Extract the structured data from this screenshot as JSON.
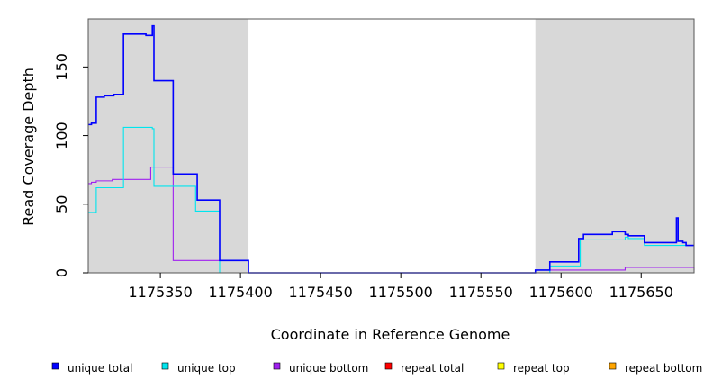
{
  "chart_data": {
    "type": "line",
    "xlabel": "Coordinate in Reference Genome",
    "ylabel": "Read Coverage Depth",
    "xlim": [
      1175305,
      1175683
    ],
    "ylim": [
      0,
      185
    ],
    "x_ticks": [
      1175350,
      1175400,
      1175450,
      1175500,
      1175550,
      1175600,
      1175650
    ],
    "x_tick_labels": [
      "1175350",
      "1175400",
      "1175450",
      "1175500",
      "1175550",
      "1175600",
      "1175650"
    ],
    "y_ticks": [
      0,
      50,
      100,
      150
    ],
    "y_tick_labels": [
      "0",
      "50",
      "100",
      "150"
    ],
    "shaded_regions": [
      [
        1175305,
        1175405
      ],
      [
        1175584,
        1175683
      ]
    ],
    "colors": {
      "shade": "#d8d8d8",
      "unique_total": "#0000ff",
      "unique_top": "#00e5ee",
      "unique_bottom": "#a020f0",
      "repeat_total": "#ff0000",
      "repeat_top": "#ffff00",
      "repeat_bottom": "#ffa500"
    },
    "series": [
      {
        "name": "unique total",
        "color": "#0000ff",
        "step": true,
        "x": [
          1175305,
          1175306,
          1175307,
          1175310,
          1175315,
          1175321,
          1175327,
          1175341,
          1175344,
          1175345,
          1175346,
          1175358,
          1175358,
          1175373,
          1175373,
          1175386,
          1175387,
          1175405,
          1175405,
          1175584,
          1175584,
          1175593,
          1175593,
          1175610,
          1175611,
          1175614,
          1175632,
          1175640,
          1175642,
          1175652,
          1175655,
          1175672,
          1175673,
          1175674,
          1175676,
          1175678,
          1175683
        ],
        "y": [
          108,
          108,
          109,
          128,
          129,
          130,
          174,
          173,
          173,
          180,
          140,
          140,
          72,
          72,
          53,
          53,
          9,
          9,
          0,
          0,
          2,
          2,
          8,
          8,
          25,
          28,
          30,
          28,
          27,
          22,
          22,
          40,
          23,
          23,
          22,
          20,
          20
        ]
      },
      {
        "name": "unique top",
        "color": "#00e5ee",
        "step": true,
        "x": [
          1175305,
          1175310,
          1175327,
          1175345,
          1175346,
          1175372,
          1175386,
          1175387,
          1175405,
          1175584,
          1175593,
          1175610,
          1175612,
          1175640,
          1175642,
          1175652,
          1175672,
          1175676,
          1175683
        ],
        "y": [
          44,
          62,
          106,
          105,
          63,
          45,
          45,
          0,
          0,
          0,
          5,
          5,
          24,
          26,
          25,
          20,
          20,
          20,
          20
        ]
      },
      {
        "name": "unique bottom",
        "color": "#a020f0",
        "step": true,
        "x": [
          1175305,
          1175307,
          1175310,
          1175315,
          1175320,
          1175344,
          1175357,
          1175358,
          1175405,
          1175584,
          1175593,
          1175630,
          1175640,
          1175683
        ],
        "y": [
          65,
          66,
          67,
          67,
          68,
          77,
          77,
          9,
          0,
          0,
          2,
          2,
          4,
          2
        ]
      },
      {
        "name": "repeat total",
        "color": "#ff0000",
        "step": true,
        "x": [
          1175305,
          1175683
        ],
        "y": [
          0,
          0
        ]
      },
      {
        "name": "repeat top",
        "color": "#ffff00",
        "step": true,
        "x": [
          1175305,
          1175683
        ],
        "y": [
          0,
          0
        ]
      },
      {
        "name": "repeat bottom",
        "color": "#ffa500",
        "step": true,
        "x": [
          1175305,
          1175683
        ],
        "y": [
          0,
          0
        ]
      }
    ],
    "legend": [
      {
        "label": "unique total",
        "color": "#0000ff"
      },
      {
        "label": "unique top",
        "color": "#00e5ee"
      },
      {
        "label": "unique bottom",
        "color": "#a020f0"
      },
      {
        "label": "repeat total",
        "color": "#ff0000"
      },
      {
        "label": "repeat top",
        "color": "#ffff00"
      },
      {
        "label": "repeat bottom",
        "color": "#ffa500"
      }
    ],
    "legend_position": "bottom"
  }
}
